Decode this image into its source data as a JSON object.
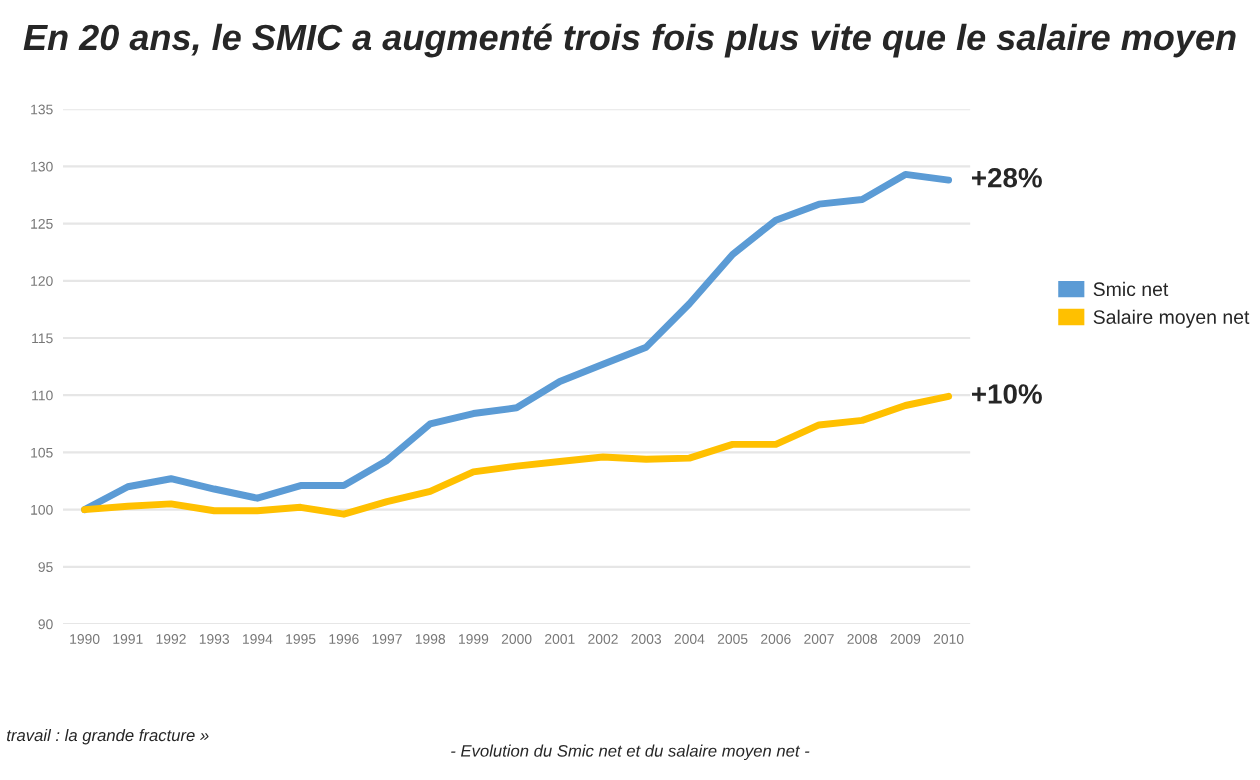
{
  "chart_data": {
    "type": "line",
    "title": "En 20 ans, le SMIC a augmenté trois fois plus vite que le salaire moyen",
    "categories": [
      "1990",
      "1991",
      "1992",
      "1993",
      "1994",
      "1995",
      "1996",
      "1997",
      "1998",
      "1999",
      "2000",
      "2001",
      "2002",
      "2003",
      "2004",
      "2005",
      "2006",
      "2007",
      "2008",
      "2009",
      "2010"
    ],
    "series": [
      {
        "name": "Smic net",
        "color": "#5b9bd5",
        "values": [
          100,
          102,
          102.7,
          101.8,
          101,
          102.1,
          102.1,
          104.3,
          107.5,
          108.4,
          108.9,
          111.2,
          112.7,
          114.2,
          118,
          122.3,
          125.3,
          126.7,
          127.1,
          129.3,
          128.8
        ]
      },
      {
        "name": "Salaire moyen net",
        "color": "#ffc000",
        "values": [
          100,
          100.3,
          100.5,
          99.9,
          99.9,
          100.2,
          99.6,
          100.7,
          101.6,
          103.3,
          103.8,
          104.2,
          104.6,
          104.4,
          104.5,
          105.7,
          105.7,
          107.4,
          107.8,
          109.1,
          109.9
        ]
      }
    ],
    "ylim": [
      90,
      135
    ],
    "yticks": [
      90,
      95,
      100,
      105,
      110,
      115,
      120,
      125,
      130,
      135
    ],
    "grid": "y",
    "legend": "right",
    "marker": "none",
    "line_style": "solid",
    "annotations": [
      {
        "text": "+28%",
        "x": "2010",
        "y": 128.8
      },
      {
        "text": "+10%",
        "x": "2010",
        "y": 109.9
      },
      "- Evolution du Smic net et du salaire moyen net -",
      "travail : la grande fracture »"
    ]
  }
}
